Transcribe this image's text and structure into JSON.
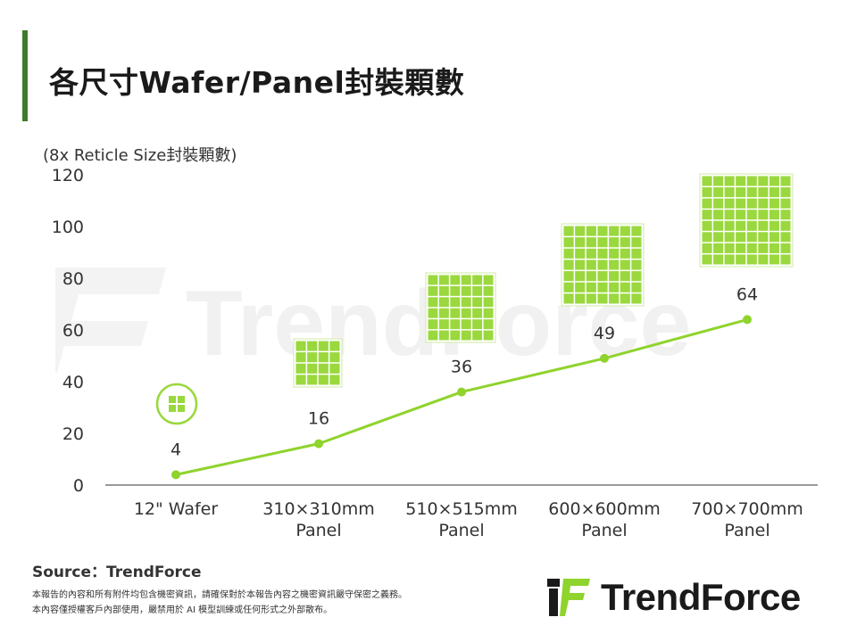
{
  "header": {
    "title": "各尺寸Wafer/Panel封裝顆數"
  },
  "colors": {
    "accent": "#3e7b2a",
    "line": "#8fd32d",
    "tile": "#9ad83e",
    "watermark": "#f1f1f1"
  },
  "chart_data": {
    "type": "line",
    "ylabel": "(8x Reticle Size封裝顆數)",
    "categories": [
      "12\" Wafer",
      "310×310mm\nPanel",
      "510×515mm\nPanel",
      "600×600mm\nPanel",
      "700×700mm\nPanel"
    ],
    "values": [
      4,
      16,
      36,
      49,
      64
    ],
    "data_labels": [
      "4",
      "16",
      "36",
      "49",
      "64"
    ],
    "yticks": [
      0,
      20,
      40,
      60,
      80,
      100,
      120
    ],
    "ylim": [
      0,
      120
    ],
    "grid": false,
    "legend": "none",
    "grid_icons": [
      {
        "rows": 2,
        "cols": 2,
        "shape": "circle"
      },
      {
        "rows": 4,
        "cols": 4,
        "shape": "square"
      },
      {
        "rows": 6,
        "cols": 6,
        "shape": "square"
      },
      {
        "rows": 7,
        "cols": 7,
        "shape": "square"
      },
      {
        "rows": 8,
        "cols": 8,
        "shape": "square"
      }
    ]
  },
  "watermark": {
    "text": "TrendForce"
  },
  "footer": {
    "source": "Source：TrendForce",
    "note1": "本報告的內容和所有附件均包含機密資訊，請確保對於本報告內容之機密資訊嚴守保密之義務。",
    "note2": "本內容僅授權客戶內部使用，嚴禁用於 AI 模型訓練或任何形式之外部散布。",
    "logo_text": "TrendForce"
  }
}
